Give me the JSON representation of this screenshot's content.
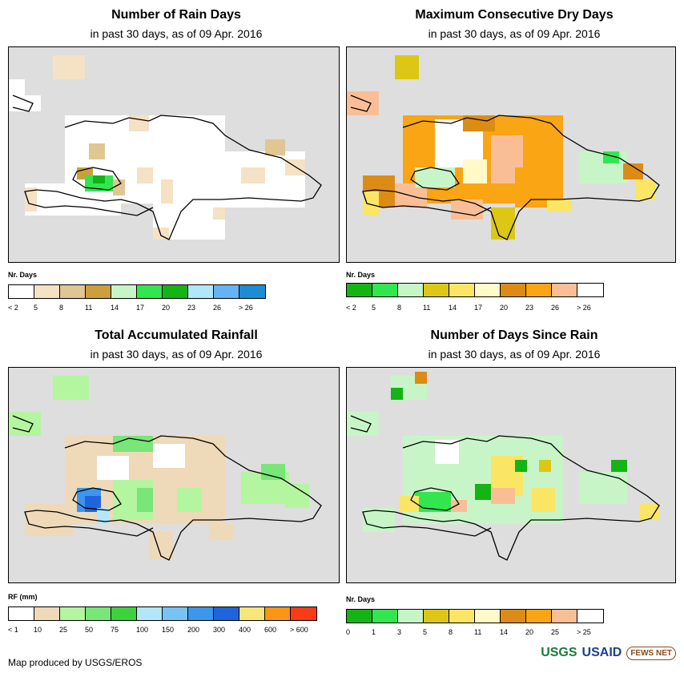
{
  "panels": {
    "rain_days": {
      "title": "Number of Rain Days",
      "subtitle": "in past 30 days, as of 09 Apr. 2016",
      "legend_title": "Nr. Days",
      "legend": [
        {
          "label": "< 2",
          "color": "#ffffff"
        },
        {
          "label": "5",
          "color": "#f5e1c4"
        },
        {
          "label": "8",
          "color": "#e0c693"
        },
        {
          "label": "11",
          "color": "#cba03c"
        },
        {
          "label": "14",
          "color": "#c8f5c8"
        },
        {
          "label": "17",
          "color": "#32e650"
        },
        {
          "label": "20",
          "color": "#14b414"
        },
        {
          "label": "23",
          "color": "#b4e6fa"
        },
        {
          "label": "26",
          "color": "#64b4f5"
        },
        {
          "label": "> 26",
          "color": "#1e8cd2"
        }
      ]
    },
    "dry_days": {
      "title": "Maximum Consecutive Dry Days",
      "subtitle": "in past 30 days, as of 09 Apr. 2016",
      "legend_title": "Nr. Days",
      "legend": [
        {
          "label": "< 2",
          "color": "#14b414"
        },
        {
          "label": "5",
          "color": "#32e650"
        },
        {
          "label": "8",
          "color": "#c8f5c8"
        },
        {
          "label": "11",
          "color": "#dcc814"
        },
        {
          "label": "14",
          "color": "#fae664"
        },
        {
          "label": "17",
          "color": "#fffac8"
        },
        {
          "label": "20",
          "color": "#dc8c14"
        },
        {
          "label": "23",
          "color": "#faa514"
        },
        {
          "label": "26",
          "color": "#fabe96"
        },
        {
          "label": "> 26",
          "color": "#ffffff"
        }
      ]
    },
    "rainfall": {
      "title": "Total Accumulated Rainfall",
      "subtitle": "in past 30 days, as of 09 Apr. 2016",
      "legend_title": "RF (mm)",
      "legend": [
        {
          "label": "< 1",
          "color": "#ffffff"
        },
        {
          "label": "10",
          "color": "#eed9b9"
        },
        {
          "label": "25",
          "color": "#b4f5a0"
        },
        {
          "label": "50",
          "color": "#78e678"
        },
        {
          "label": "75",
          "color": "#3cd23c"
        },
        {
          "label": "100",
          "color": "#b4e6fa"
        },
        {
          "label": "150",
          "color": "#78c3f5"
        },
        {
          "label": "200",
          "color": "#3c96eb"
        },
        {
          "label": "300",
          "color": "#1e64dc"
        },
        {
          "label": "400",
          "color": "#fae678"
        },
        {
          "label": "600",
          "color": "#fa9614"
        },
        {
          "label": "> 600",
          "color": "#fa3c14"
        }
      ]
    },
    "days_since_rain": {
      "title": "Number of Days Since Rain",
      "subtitle": "in past 30 days, as of 09 Apr. 2016",
      "legend_title": "Nr. Days",
      "legend": [
        {
          "label": "0",
          "color": "#14b414"
        },
        {
          "label": "1",
          "color": "#32e650"
        },
        {
          "label": "3",
          "color": "#c8f5c8"
        },
        {
          "label": "5",
          "color": "#dcc814"
        },
        {
          "label": "8",
          "color": "#fae664"
        },
        {
          "label": "11",
          "color": "#fffac8"
        },
        {
          "label": "14",
          "color": "#dc8c14"
        },
        {
          "label": "20",
          "color": "#faa514"
        },
        {
          "label": "25",
          "color": "#fabe96"
        },
        {
          "label": "> 25",
          "color": "#ffffff"
        }
      ]
    }
  },
  "credit": "Map produced by USGS/EROS",
  "logos": {
    "usgs": "USGS",
    "usaid": "USAID",
    "fews": "FEWS NET"
  }
}
